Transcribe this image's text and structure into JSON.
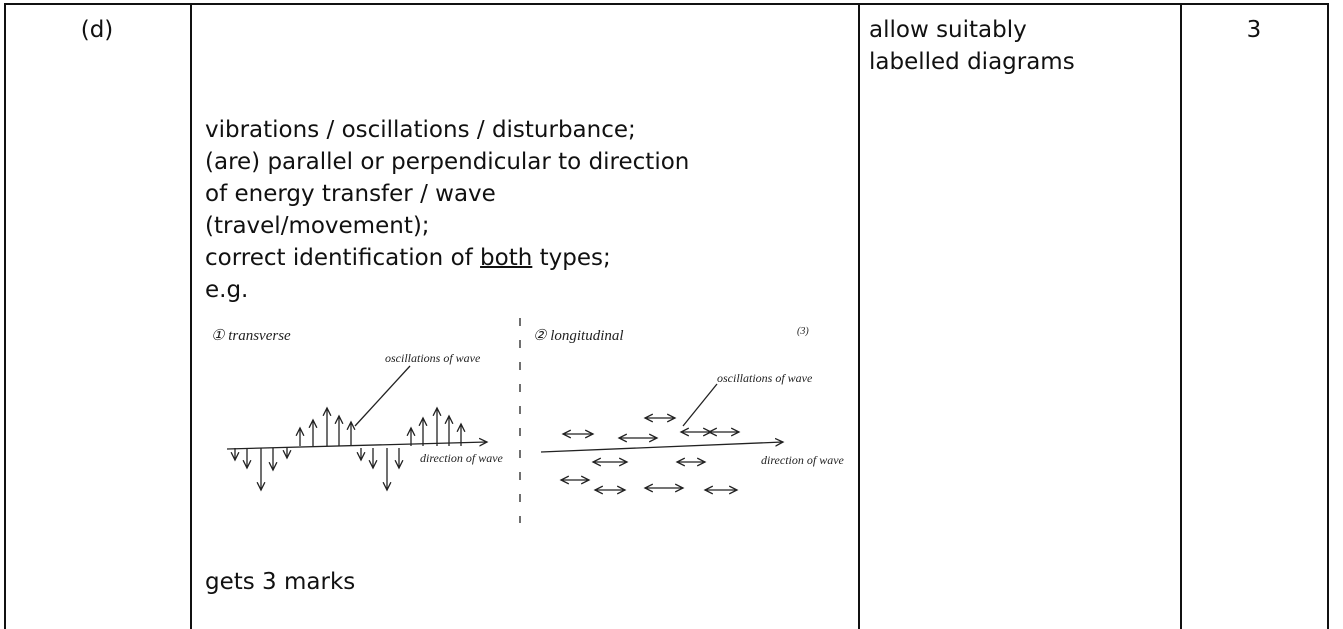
{
  "table": {
    "rows": [
      {
        "part": "(d)",
        "answer": {
          "lines": [
            "vibrations / oscillations / disturbance;",
            "(are) parallel or perpendicular to direction",
            "of energy transfer / wave",
            "(travel/movement);"
          ],
          "identification": {
            "before": "correct identification of ",
            "underlined": "both",
            "after": " types;"
          },
          "example": "e.g.",
          "diagram": {
            "transverse": {
              "title": "① transverse",
              "oscillations": "oscillations of wave",
              "direction": "direction of wave"
            },
            "longitudinal": {
              "title": "② longitudinal",
              "marks": "(3)",
              "oscillations": "oscillations of wave",
              "direction": "direction of wave"
            }
          },
          "footer": "gets 3 marks"
        },
        "notes": "allow suitably labelled diagrams",
        "marks": "3"
      }
    ]
  }
}
